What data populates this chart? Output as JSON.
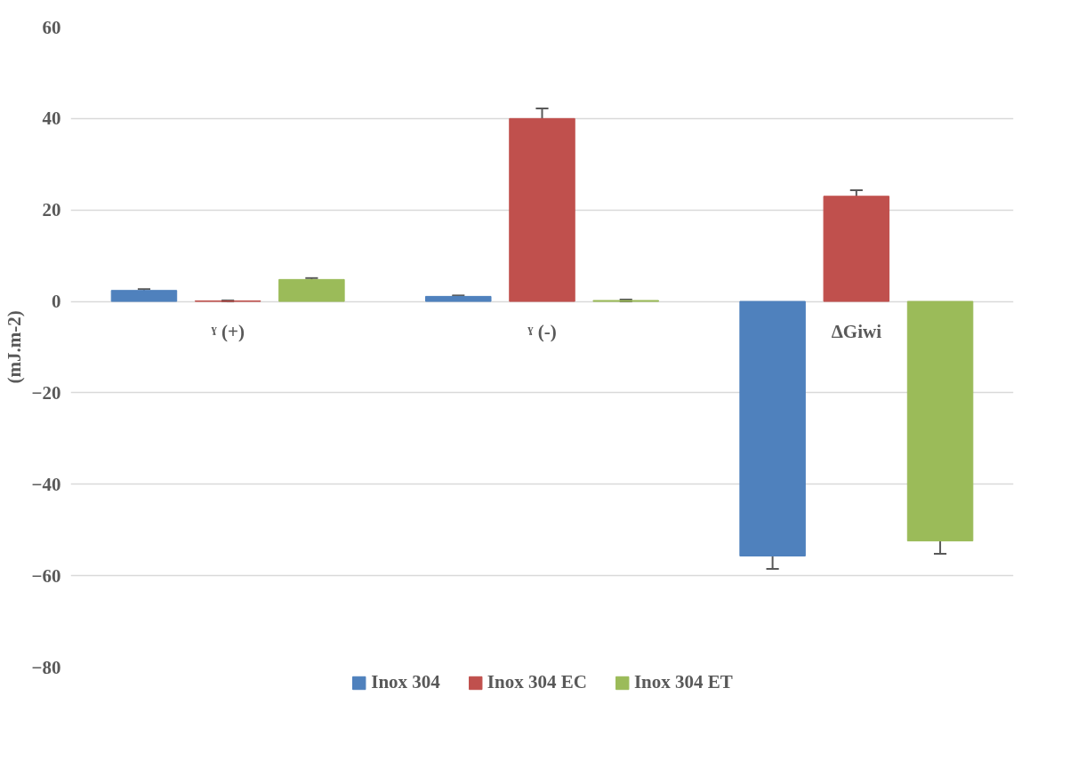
{
  "chart_data": {
    "type": "bar",
    "ylabel": "(mJ.m-2)",
    "categories": [
      "ˠ (+)",
      "ˠ (-)",
      "ΔGiwi"
    ],
    "series": [
      {
        "name": "Inox 304",
        "color": "#4f81bd",
        "values": [
          2.4,
          1.1,
          -55.7
        ],
        "errors": [
          0.3,
          0.2,
          2.8
        ]
      },
      {
        "name": "Inox 304 EC",
        "color": "#c0504d",
        "values": [
          0.1,
          40.0,
          23.0
        ],
        "errors": [
          0.1,
          2.2,
          1.3
        ]
      },
      {
        "name": "Inox 304 ET",
        "color": "#9bbb59",
        "values": [
          4.8,
          0.2,
          -52.4
        ],
        "errors": [
          0.3,
          0.2,
          2.8
        ]
      }
    ],
    "ylim": [
      -80,
      60
    ],
    "yticks": [
      -80,
      -60,
      -40,
      -20,
      0,
      20,
      40,
      60
    ],
    "grid": "y",
    "legend": "bottom"
  }
}
